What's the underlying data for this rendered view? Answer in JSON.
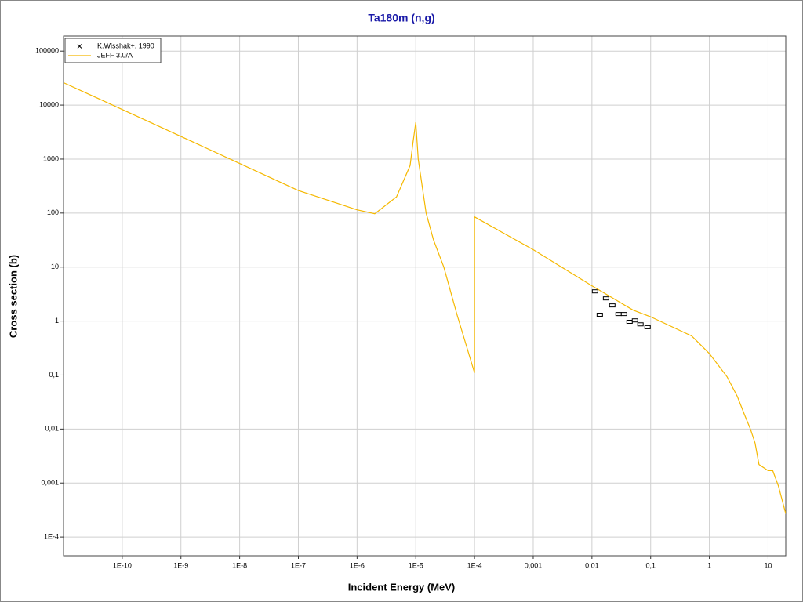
{
  "chart_data": {
    "type": "line",
    "title": "Ta180m (n,g)",
    "xlabel": "Incident Energy (MeV)",
    "ylabel": "Cross section (b)",
    "xscale": "log",
    "yscale": "log",
    "grid": true,
    "legend": "upper left",
    "xlim": [
      1e-11,
      20
    ],
    "ylim": [
      4.5e-05,
      190000
    ],
    "xticks": [
      {
        "value": 1e-10,
        "label": "1E-10"
      },
      {
        "value": 1e-09,
        "label": "1E-9"
      },
      {
        "value": 1e-08,
        "label": "1E-8"
      },
      {
        "value": 1e-07,
        "label": "1E-7"
      },
      {
        "value": 1e-06,
        "label": "1E-6"
      },
      {
        "value": 1e-05,
        "label": "1E-5"
      },
      {
        "value": 0.0001,
        "label": "1E-4"
      },
      {
        "value": 0.001,
        "label": "0,001"
      },
      {
        "value": 0.01,
        "label": "0,01"
      },
      {
        "value": 0.1,
        "label": "0,1"
      },
      1,
      10
    ],
    "yticks": [
      {
        "value": 0.0001,
        "label": "1E-4"
      },
      {
        "value": 0.001,
        "label": "0,001"
      },
      {
        "value": 0.01,
        "label": "0,01"
      },
      {
        "value": 0.1,
        "label": "0,1"
      },
      1,
      10,
      100,
      1000,
      10000,
      100000
    ],
    "series": [
      {
        "name": "K.Wisshak+, 1990",
        "style": "marker",
        "color": "#000000",
        "x": [
          0.0113,
          0.0136,
          0.0174,
          0.0222,
          0.0284,
          0.0352,
          0.0437,
          0.0541,
          0.067,
          0.0885
        ],
        "values": [
          3.55,
          1.31,
          2.63,
          1.95,
          1.35,
          1.35,
          0.97,
          1.03,
          0.87,
          0.77
        ]
      },
      {
        "name": "JEFF 3.0/A",
        "style": "line",
        "color": "#f5b800",
        "x": [
          1e-11,
          1e-10,
          1e-09,
          1e-08,
          1e-07,
          1e-06,
          2e-06,
          4.7e-06,
          8e-06,
          9e-06,
          1e-05,
          1.1e-05,
          1.5e-05,
          2e-05,
          3e-05,
          5e-05,
          0.0001,
          0.0001,
          0.001,
          0.01,
          0.05,
          0.1,
          0.5,
          1,
          2,
          3,
          4,
          5,
          6,
          7,
          10,
          12,
          15,
          20
        ],
        "values": [
          26000,
          8300,
          2630,
          830,
          262,
          115,
          97,
          200,
          760,
          2100,
          4800,
          1000,
          100,
          32,
          10,
          1.35,
          0.11,
          85,
          21,
          4.5,
          1.6,
          1.2,
          0.53,
          0.25,
          0.093,
          0.04,
          0.018,
          0.01,
          0.0055,
          0.0022,
          0.0017,
          0.0017,
          0.00088,
          0.00027
        ]
      }
    ]
  }
}
